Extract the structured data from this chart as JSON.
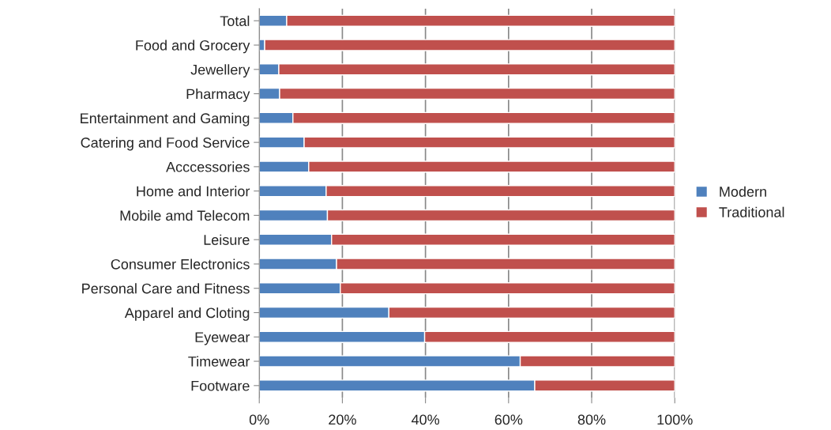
{
  "chart_data": {
    "type": "bar",
    "orientation": "horizontal",
    "stacked": true,
    "categories": [
      "Total",
      "Food and Grocery",
      "Jewellery",
      "Pharmacy",
      "Entertainment and Gaming",
      "Catering and Food Service",
      "Acccessories",
      "Home and Interior",
      "Mobile amd Telecom",
      "Leisure",
      "Consumer Electronics",
      "Personal Care and Fitness",
      "Apparel and Cloting",
      "Eyewear",
      "Timewear",
      "Footware"
    ],
    "series": [
      {
        "name": "Modern",
        "color": "#4f81bd",
        "values": [
          6.6,
          1.3,
          4.7,
          4.9,
          8.1,
          10.8,
          11.9,
          16.1,
          16.4,
          17.4,
          18.6,
          19.5,
          31.2,
          39.8,
          62.8,
          66.3
        ]
      },
      {
        "name": "Traditional",
        "color": "#c0504d",
        "values": [
          93.4,
          98.7,
          95.3,
          95.1,
          91.9,
          89.2,
          88.1,
          83.9,
          83.6,
          82.6,
          81.4,
          80.5,
          68.8,
          60.2,
          37.2,
          33.7
        ]
      }
    ],
    "xlim": [
      0,
      100
    ],
    "xticks": [
      {
        "value": 0,
        "label": "0%"
      },
      {
        "value": 20,
        "label": "20%"
      },
      {
        "value": 40,
        "label": "40%"
      },
      {
        "value": 60,
        "label": "60%"
      },
      {
        "value": 80,
        "label": "80%"
      },
      {
        "value": 100,
        "label": "100%"
      }
    ],
    "grid": "x",
    "legend": "right"
  }
}
